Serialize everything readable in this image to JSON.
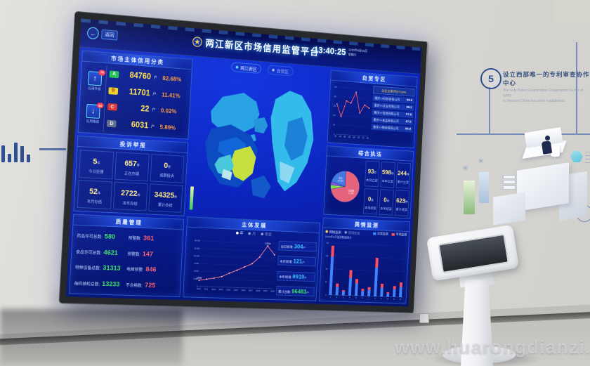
{
  "watermark": "www.huarongdianzi.com",
  "wall": {
    "step_number": "5",
    "milestone_zh": "设立西部唯一的专利审查协作中心",
    "milestone_en_1": "The only Patent Examination Cooperation Center of SIPO",
    "milestone_en_2": "in Western China has been established."
  },
  "screen": {
    "back_label": "返回",
    "header": {
      "title": "两江新区市场信用监管平台",
      "time": "13:40:25",
      "date": "2020年8月19日",
      "weekday": "星期三"
    },
    "map": {
      "tabs": [
        {
          "label": "两江新区"
        },
        {
          "label": "自贸区"
        }
      ]
    },
    "credit": {
      "title": "市场主体信用分类",
      "upgrade": {
        "label": "信用升级",
        "badge": "78"
      },
      "downgrade": {
        "label": "信用降级",
        "badge": "63"
      },
      "rows": [
        {
          "grade": "A",
          "count": "84760",
          "unit": "户",
          "percent": "82.68%",
          "color": "#17c24b"
        },
        {
          "grade": "B",
          "count": "11701",
          "unit": "户",
          "percent": "11.41%",
          "color": "#e8d020"
        },
        {
          "grade": "C",
          "count": "22",
          "unit": "户",
          "percent": "0.02%",
          "color": "#e03131"
        },
        {
          "grade": "D",
          "count": "6031",
          "unit": "户",
          "percent": "5.89%",
          "color": "#5a6b8a"
        }
      ]
    },
    "complaints": {
      "title": "投诉举报",
      "items": [
        {
          "value": "5",
          "unit": "件",
          "label": "今日受理"
        },
        {
          "value": "657",
          "unit": "件",
          "label": "正在办理"
        },
        {
          "value": "0",
          "unit": "件",
          "label": "逾期投诉"
        },
        {
          "value": "52",
          "unit": "件",
          "label": "本月办结"
        },
        {
          "value": "2722",
          "unit": "件",
          "label": "本年办结"
        },
        {
          "value": "34325",
          "unit": "件",
          "label": "累计办结"
        }
      ]
    },
    "quality": {
      "title": "质量管理",
      "rows": [
        {
          "label": "药品许可总数:",
          "value": "580",
          "label2": "预警数:",
          "value2": "361"
        },
        {
          "label": "食品许可总数:",
          "value": "4621",
          "label2": "预警数:",
          "value2": "147"
        },
        {
          "label": "特种设备总数:",
          "value": "31313",
          "label2": "电梯预警:",
          "value2": "846"
        },
        {
          "label": "抽样抽检总数:",
          "value": "13233",
          "label2": "不合格数:",
          "value2": "725"
        }
      ]
    },
    "development": {
      "title": "主体发展",
      "legend": [
        "年",
        "月",
        "季度"
      ],
      "stats": [
        {
          "label": "当日新增:",
          "value": "304",
          "unit": "户"
        },
        {
          "label": "本月新增:",
          "value": "121",
          "unit": "户"
        },
        {
          "label": "本年新增:",
          "value": "8919",
          "unit": "户"
        },
        {
          "label": "累计总数:",
          "value": "96483",
          "unit": "户"
        }
      ]
    },
    "free_trade": {
      "title": "自贸专区",
      "list_header": "企业信用评分TOP5",
      "list": [
        {
          "name": "重庆××科技有限公司",
          "value": "98.5"
        },
        {
          "name": "重庆××实业有限公司",
          "value": "98.2"
        },
        {
          "name": "重庆××贸易有限公司",
          "value": "97.8"
        },
        {
          "name": "重庆××食品有限公司",
          "value": "97.5"
        },
        {
          "name": "重庆××物流有限公司",
          "value": "96.9"
        }
      ]
    },
    "enforcement": {
      "title": "综合执法",
      "stats": [
        {
          "value": "93",
          "unit": "件",
          "label": "本月立案"
        },
        {
          "value": "598",
          "unit": "件",
          "label": "本年立案"
        },
        {
          "value": "244",
          "unit": "件",
          "label": "累计立案"
        },
        {
          "value": "0",
          "unit": "件",
          "label": "本月结案"
        },
        {
          "value": "0",
          "unit": "件",
          "label": "本年结案"
        },
        {
          "value": "623",
          "unit": "件",
          "label": "累计结案"
        }
      ]
    },
    "monitor": {
      "title": "舆情监测",
      "caption": "2020年8月监测数据统计",
      "toggles": [
        "网络监测",
        "现场检查"
      ],
      "legend": [
        {
          "label": "日常监测",
          "color": "#3f82ff"
        },
        {
          "label": "专项监测",
          "color": "#ff4d5e"
        }
      ]
    }
  },
  "chart_data": [
    {
      "id": "entity-growth",
      "type": "line",
      "title": "主体发展",
      "x": [
        "2010",
        "2011",
        "2012",
        "2013",
        "2014",
        "2015",
        "2016",
        "2017",
        "2018",
        "2019",
        "2020"
      ],
      "values": [
        2408,
        2950,
        3450,
        4150,
        5600,
        6900,
        8300,
        9700,
        12500,
        17034,
        13600
      ],
      "ylim": [
        0,
        18000
      ],
      "color": "#ff7d8a",
      "point_labels": [
        {
          "i": 0,
          "text": "2408"
        },
        {
          "i": 9,
          "text": "17034"
        }
      ]
    },
    {
      "id": "free-trade-trend",
      "type": "line",
      "title": "自贸专区",
      "x": [
        "1月",
        "2月",
        "3月",
        "4月",
        "5月",
        "6月",
        "7月",
        "8月"
      ],
      "values": [
        160,
        95,
        180,
        170,
        230,
        120,
        165,
        150
      ],
      "ylim": [
        0,
        250
      ],
      "color": "#ff5b66"
    },
    {
      "id": "enforcement-pie",
      "type": "pie",
      "title": "综合执法",
      "slices": [
        {
          "label": "已结案",
          "pct": 71.5,
          "color": "#e4647e"
        },
        {
          "label": "中止",
          "pct": 4.5,
          "color": "#8bdc50"
        },
        {
          "label": "其他",
          "pct": 3.2,
          "color": "#8a5ae0"
        },
        {
          "label": "在办",
          "pct": 20.8,
          "color": "#4577e0"
        }
      ]
    },
    {
      "id": "monitor-bars",
      "type": "bar",
      "stacked": true,
      "title": "舆情监测",
      "categories": [
        "1",
        "2",
        "3",
        "4",
        "5",
        "6",
        "7",
        "8",
        "9",
        "10",
        "11",
        "12"
      ],
      "series": [
        {
          "name": "日常监测",
          "color": "#3f82ff",
          "values": [
            118,
            26,
            12,
            55,
            38,
            16,
            20,
            90,
            28,
            10,
            24,
            32
          ]
        },
        {
          "name": "专项监测",
          "color": "#ff4d5e",
          "values": [
            34,
            10,
            4,
            24,
            14,
            6,
            8,
            30,
            12,
            4,
            10,
            14
          ]
        }
      ],
      "ylim": [
        0,
        160
      ]
    }
  ]
}
